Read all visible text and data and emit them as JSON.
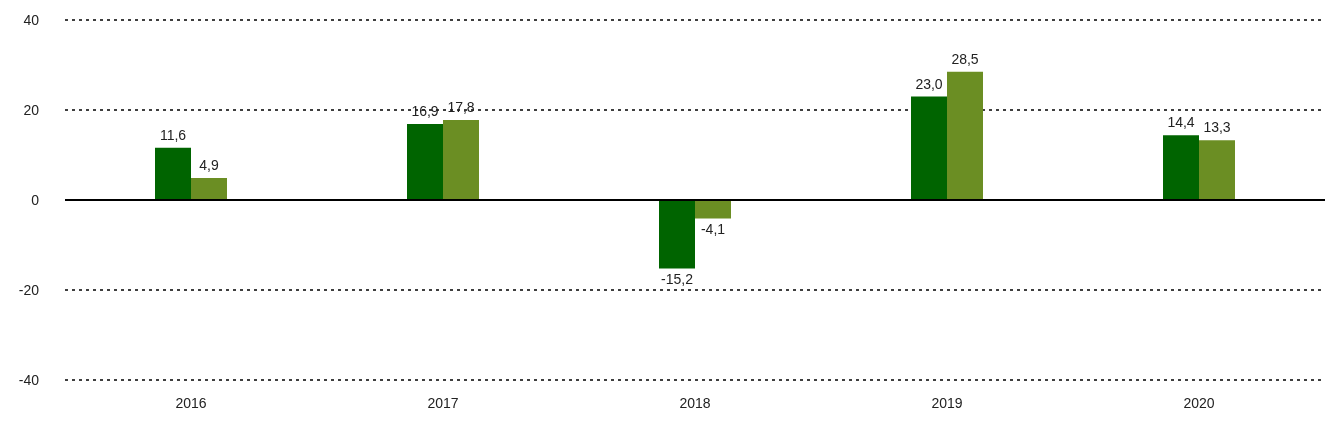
{
  "chart_data": {
    "type": "bar",
    "categories": [
      "2016",
      "2017",
      "2018",
      "2019",
      "2020"
    ],
    "series": [
      {
        "color": "#006400",
        "values": [
          11.6,
          16.9,
          -15.2,
          23.0,
          14.4
        ],
        "value_labels": [
          "11,6",
          "16,9",
          "-15,2",
          "23,0",
          "14,4"
        ]
      },
      {
        "color": "#6b8e23",
        "values": [
          4.9,
          17.8,
          -4.1,
          28.5,
          13.3
        ],
        "value_labels": [
          "4,9",
          "17,8",
          "-4,1",
          "28,5",
          "13,3"
        ]
      }
    ],
    "ylim": [
      -40,
      40
    ],
    "yticks": [
      -40,
      -20,
      0,
      20,
      40
    ],
    "grid": "y",
    "ref_lines": [
      {
        "axis": "y",
        "value": 0,
        "color": "#000000"
      }
    ]
  }
}
